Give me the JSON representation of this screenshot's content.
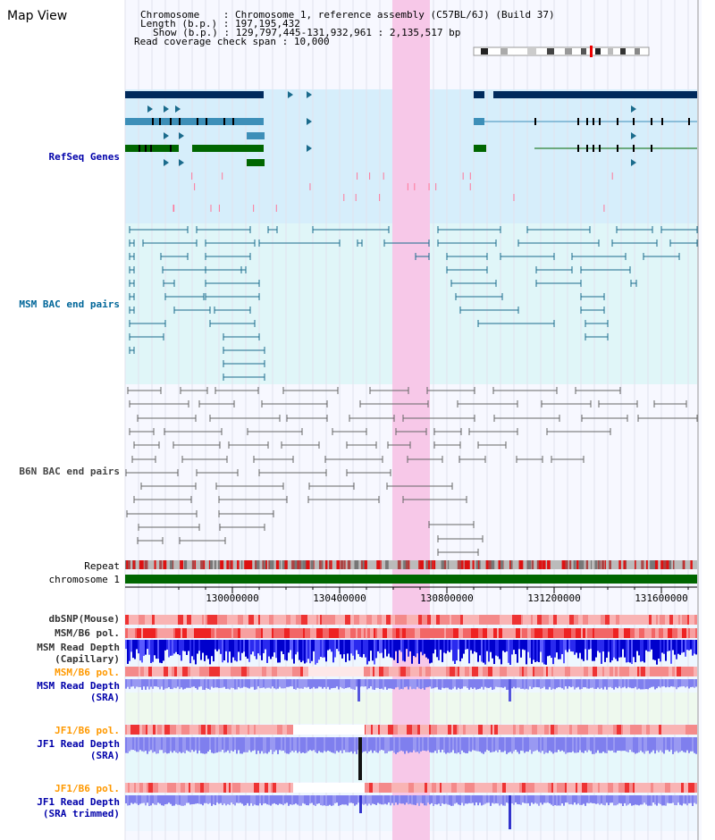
{
  "title": "Map View",
  "info": {
    "chromosome_label": "Chromosome",
    "chromosome_value": "Chromosome 1, reference assembly (C57BL/6J) (Build 37)",
    "length_label": "Length (b.p.)",
    "length_value": "197,195,432",
    "show_label": "Show (b.p.)",
    "show_value": "129,797,445-131,932,961 : 2,135,517 bp",
    "coverage_label": "Read coverage check span",
    "coverage_value": "10,000"
  },
  "tracks": {
    "refseq": "RefSeq Genes",
    "msm_bac": "MSM BAC end pairs",
    "b6n_bac": "B6N BAC end pairs",
    "repeat": "Repeat",
    "chromosome": "chromosome 1",
    "dbsnp": "dbSNP(Mouse)",
    "msm_b6_pol": "MSM/B6 pol.",
    "msm_depth_cap_1": "MSM Read Depth",
    "msm_depth_cap_2": "(Capillary)",
    "msm_b6_pol_2": "MSM/B6 pol.",
    "msm_depth_sra_1": "MSM Read Depth",
    "msm_depth_sra_2": "(SRA)",
    "jf1_b6_pol": "JF1/B6 pol.",
    "jf1_depth_sra_1": "JF1 Read Depth",
    "jf1_depth_sra_2": "(SRA)",
    "jf1_b6_pol_2": "JF1/B6 pol.",
    "jf1_depth_trim_1": "JF1 Read Depth",
    "jf1_depth_trim_2": "(SRA trimmed)"
  },
  "axis": {
    "ticks": [
      {
        "label": "130000000",
        "value": 130000000
      },
      {
        "label": "130400000",
        "value": 130400000
      },
      {
        "label": "130800000",
        "value": 130800000
      },
      {
        "label": "131200000",
        "value": 131200000
      },
      {
        "label": "131600000",
        "value": 131600000
      }
    ],
    "range": [
      129797445,
      131932961
    ]
  },
  "highlight": {
    "start": 130797445,
    "end": 130937445
  },
  "colors": {
    "refseq_label": "#0000aa",
    "msm_label": "#006699",
    "b6n_label": "#333333",
    "orange_label": "#ff9900",
    "navy_gene": "#002a5c",
    "blue_gene": "#3d8fb8",
    "green_gene": "#006600",
    "highlight": "#f7c8e8",
    "refseq_bg": "#d6eefb",
    "msm_bg": "#e0f6f8",
    "depth_blue": "#0000dd",
    "depth_sra": "#8080ee"
  }
}
